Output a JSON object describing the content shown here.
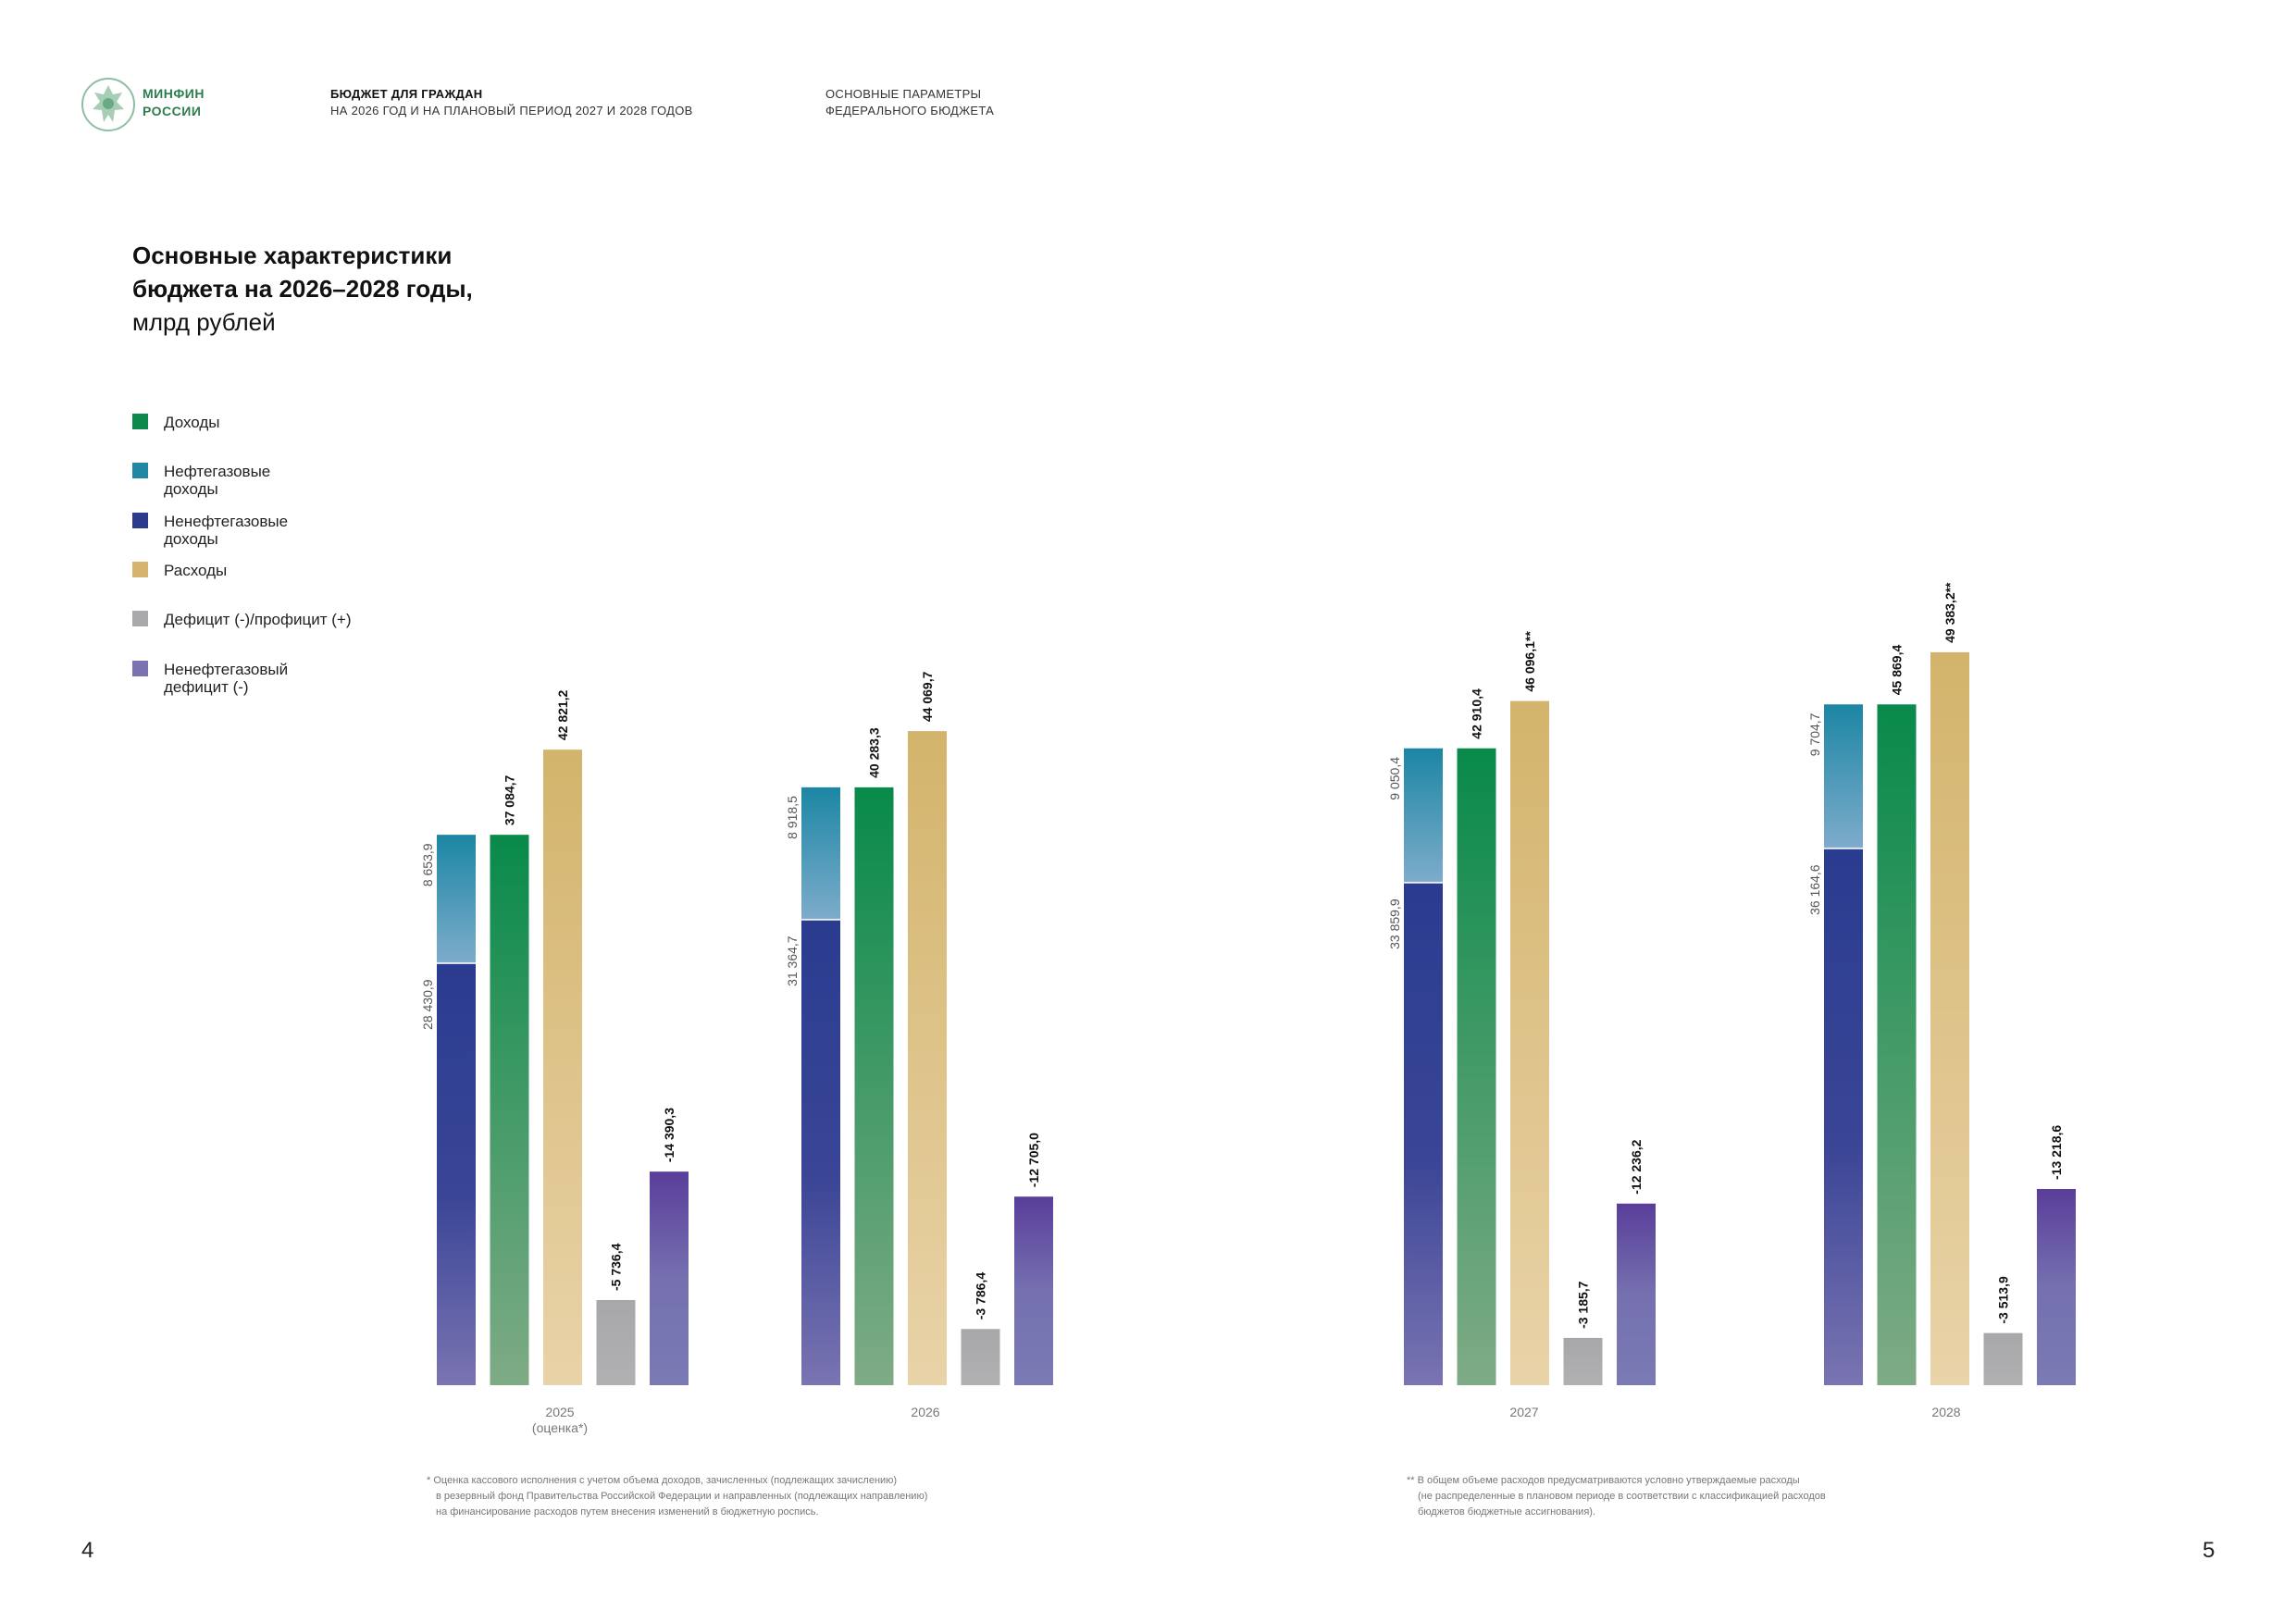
{
  "header": {
    "org_line1": "МИНФИН",
    "org_line2": "РОССИИ",
    "doc_title_bold": "БЮДЖЕТ ДЛЯ ГРАЖДАН",
    "doc_title_sub": "НА 2026 ГОД И НА ПЛАНОВЫЙ ПЕРИОД 2027 И 2028 ГОДОВ",
    "section_line1": "ОСНОВНЫЕ ПАРАМЕТРЫ",
    "section_line2": "ФЕДЕРАЛЬНОГО БЮДЖЕТА"
  },
  "heading": {
    "line1": "Основные характеристики",
    "line2": "бюджета на 2026–2028 годы,",
    "unit": "млрд рублей"
  },
  "legend": [
    {
      "label": "Доходы",
      "color": "#0b8a4c"
    },
    {
      "label": "Нефтегазовые доходы",
      "color": "#2187a5"
    },
    {
      "label": "Ненефтегазовые доходы",
      "color": "#2c3a8c"
    },
    {
      "label": "Расходы",
      "color": "#d4b46e"
    },
    {
      "label": "Дефицит (-)/профицит (+)",
      "color": "#a9a9ab"
    },
    {
      "label": "Ненефтегазовый дефицит (-)",
      "color": "#7a73b0"
    }
  ],
  "chart_data": {
    "type": "bar",
    "title": "Основные характеристики бюджета на 2026–2028 годы, млрд рублей",
    "categories": [
      "2025 (оценка*)",
      "2026",
      "2027",
      "2028"
    ],
    "category_labels": [
      {
        "line1": "2025",
        "line2": "(оценка*)"
      },
      {
        "line1": "2026",
        "line2": ""
      },
      {
        "line1": "2027",
        "line2": ""
      },
      {
        "line1": "2028",
        "line2": ""
      }
    ],
    "series": [
      {
        "name": "Ненефтегазовые доходы",
        "stack": "revenue_split",
        "values": [
          28430.9,
          31364.7,
          33859.9,
          36164.6
        ],
        "labels": [
          "28 430,9",
          "31 364,7",
          "33 859,9",
          "36 164,6"
        ]
      },
      {
        "name": "Нефтегазовые доходы",
        "stack": "revenue_split",
        "values": [
          8653.9,
          8918.5,
          9050.4,
          9704.7
        ],
        "labels": [
          "8 653,9",
          "8 918,5",
          "9 050,4",
          "9 704,7"
        ]
      },
      {
        "name": "Доходы",
        "values": [
          37084.7,
          40283.3,
          42910.4,
          45869.4
        ],
        "labels": [
          "37 084,7",
          "40 283,3",
          "42 910,4",
          "45 869,4"
        ]
      },
      {
        "name": "Расходы",
        "values": [
          42821.2,
          44069.7,
          46096.1,
          49383.2
        ],
        "labels": [
          "42 821,2",
          "44 069,7",
          "46 096,1**",
          "49 383,2**"
        ]
      },
      {
        "name": "Дефицит (-)/профицит (+)",
        "values": [
          -5736.4,
          -3786.4,
          -3185.7,
          -3513.9
        ],
        "labels": [
          "-5 736,4",
          "-3 786,4",
          "-3 185,7",
          "-3 513,9"
        ]
      },
      {
        "name": "Ненефтегазовый дефицит (-)",
        "values": [
          -14390.3,
          -12705.0,
          -12236.2,
          -13218.6
        ],
        "labels": [
          "-14 390,3",
          "-12 705,0",
          "-12 236,2",
          "-13 218,6"
        ]
      }
    ],
    "xlabel": "",
    "ylabel": "млрд рублей",
    "ylim": [
      0,
      50000
    ],
    "grid": false,
    "legend_position": "top-left"
  },
  "footnotes": {
    "left": [
      "* Оценка кассового исполнения с учетом объема доходов, зачисленных (подлежащих зачислению)",
      "в резервный фонд Правительства Российской Федерации и направленных (подлежащих направлению)",
      "на финансирование расходов путем внесения изменений в бюджетную роспись."
    ],
    "right": [
      "** В общем объеме расходов предусматриваются условно утверждаемые расходы",
      "(не распределенные в плановом периоде в соответствии с классификацией расходов",
      "бюджетов бюджетные ассигнования)."
    ]
  },
  "pages": {
    "left": "4",
    "right": "5"
  }
}
